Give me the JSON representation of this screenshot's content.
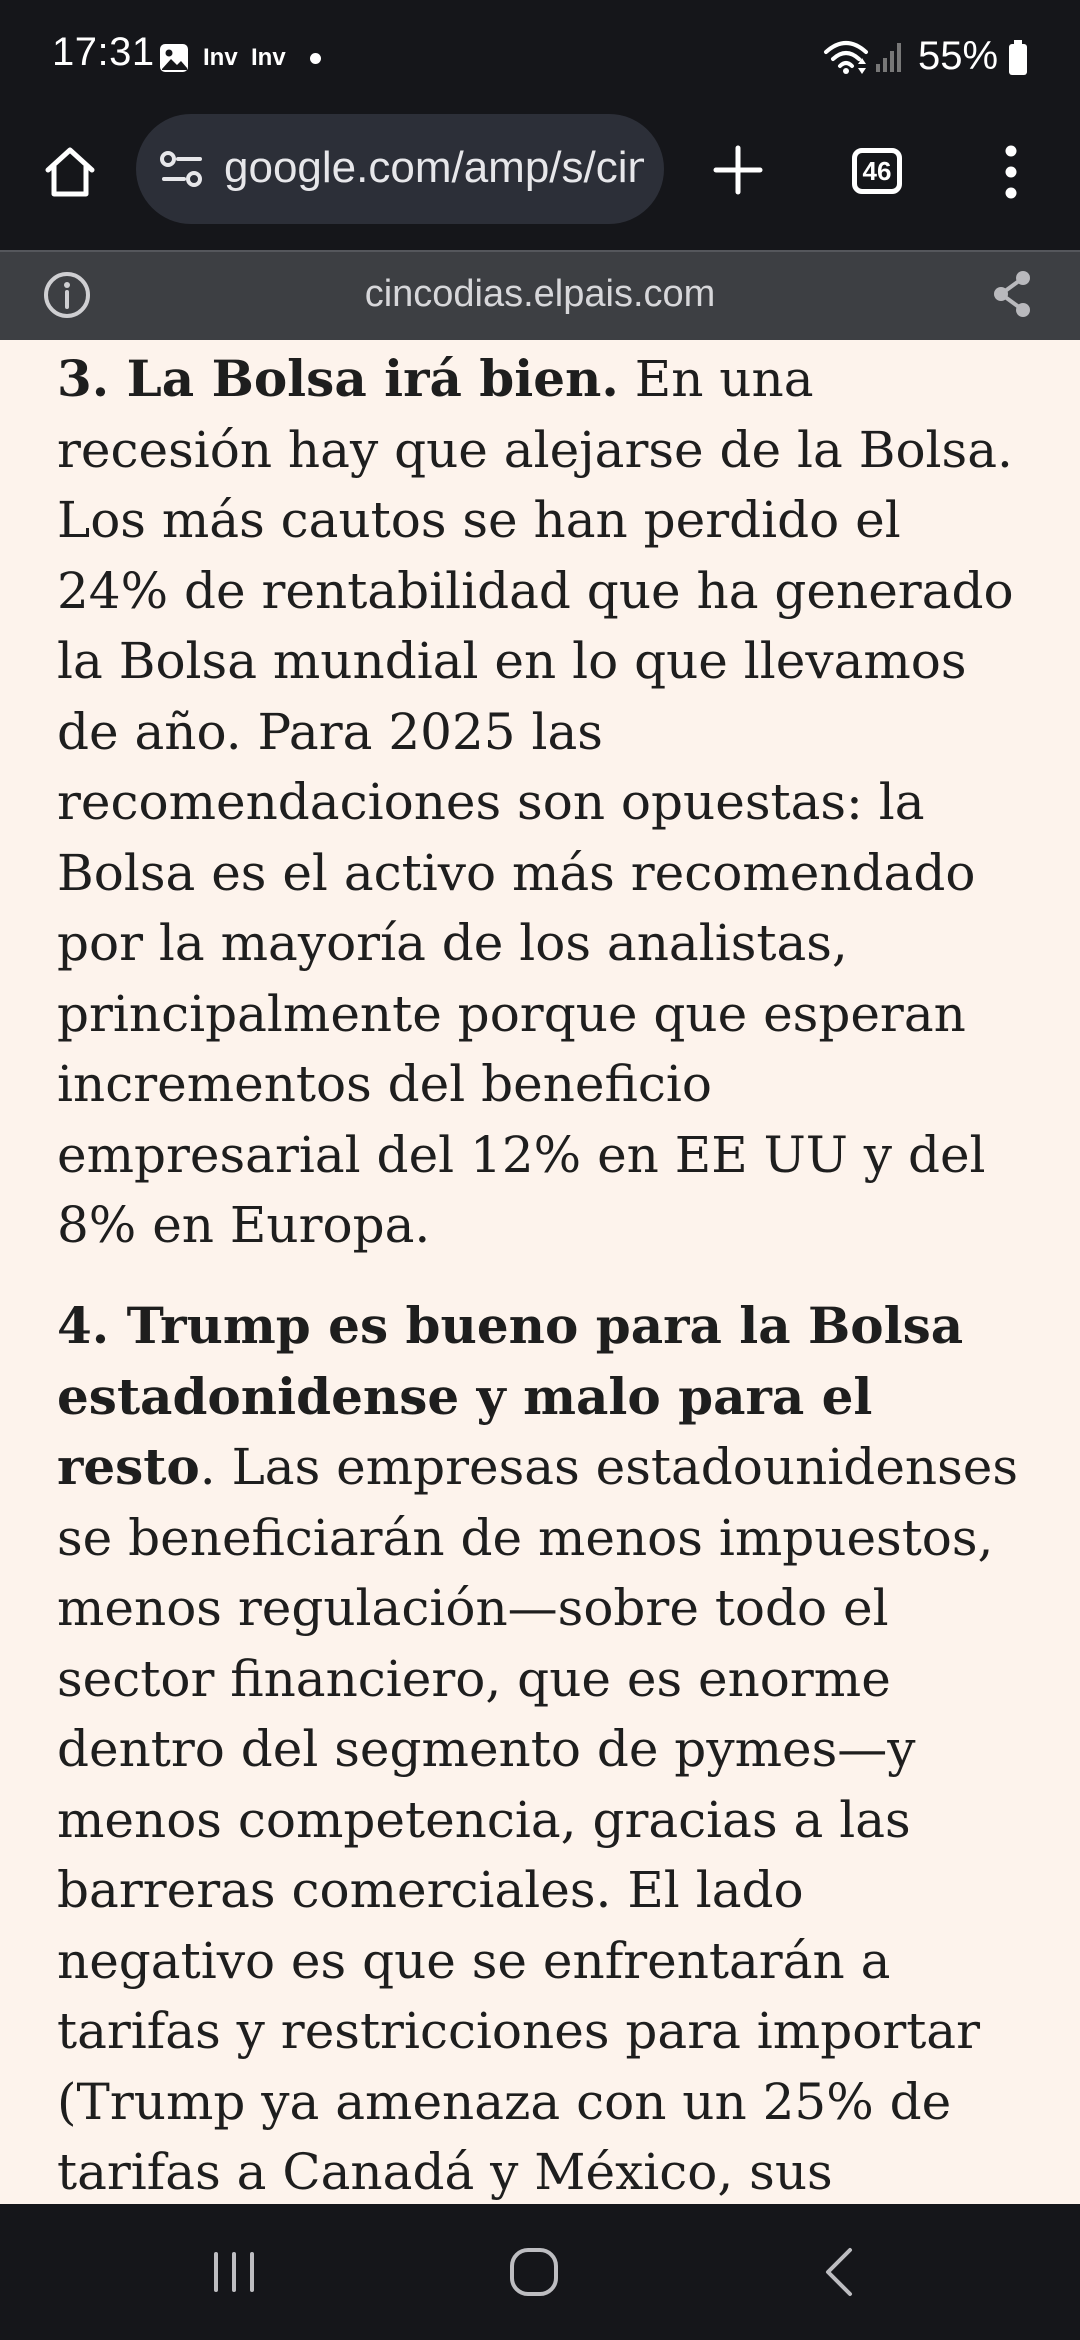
{
  "status_bar": {
    "time": "17:31",
    "app_label_1": "Inv",
    "app_label_2": "Inv",
    "battery": "55%"
  },
  "toolbar": {
    "url": "google.com/amp/s/cincodias.elpais.com",
    "tab_count": "46"
  },
  "amp_bar": {
    "domain": "cincodias.elpais.com"
  },
  "article": {
    "p3_bold": "3. La Bolsa irá bien.",
    "p3_text": "En una recesión hay que alejarse de la Bolsa. Los más cautos se han perdido el 24% de rentabilidad que ha generado la Bolsa mundial en lo que llevamos de año. Para 2025 las recomendaciones son opuestas: la Bolsa es el activo más recomendado por la mayoría de los analistas, principalmente porque que esperan incrementos del beneficio empresarial del 12% en EE UU y del 8% en Europa.",
    "p4_bold": "4. Trump es bueno para la Bolsa estadonidense y malo para el resto",
    "p4_period": ".",
    "p4_text": "Las empresas estadounidenses se beneficiarán de menos impuestos, menos regulación—sobre todo el sector financiero, que es enorme dentro del segmento de pymes—y menos competencia, gracias a las barreras comerciales. El lado negativo es que se enfrentarán a tarifas y restricciones para importar (Trump ya amenaza con un 25% de tarifas a Canadá y México, sus principales"
  },
  "colors": {
    "chrome_bg": "#15161a",
    "url_bar_bg": "#2c2f38",
    "amp_bar_bg": "#3d3f43",
    "page_bg": "#fdf3ec",
    "text": "#1e1e1e"
  }
}
